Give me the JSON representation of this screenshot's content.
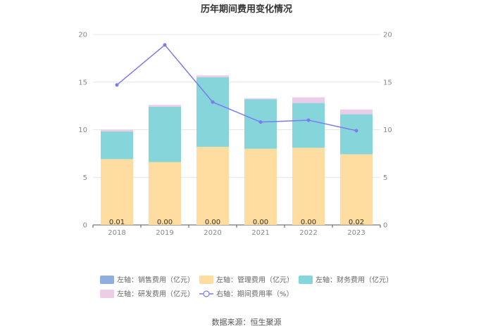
{
  "chart_data": {
    "type": "bar",
    "title": "历年期间费用变化情况",
    "categories": [
      "2018",
      "2019",
      "2020",
      "2021",
      "2022",
      "2023"
    ],
    "series": [
      {
        "name": "左轴：销售费用（亿元）",
        "axis": "left",
        "kind": "stacked-bar",
        "color": "#8eaee0",
        "values": [
          0.01,
          0.0,
          0.0,
          0.0,
          0.0,
          0.02
        ]
      },
      {
        "name": "左轴：管理费用（亿元）",
        "axis": "left",
        "kind": "stacked-bar",
        "color": "#ffdca0",
        "values": [
          6.9,
          6.6,
          8.2,
          8.0,
          8.1,
          7.4
        ]
      },
      {
        "name": "左轴：财务费用（亿元）",
        "axis": "left",
        "kind": "stacked-bar",
        "color": "#86d5da",
        "values": [
          2.9,
          5.8,
          7.3,
          5.2,
          4.7,
          4.2
        ]
      },
      {
        "name": "左轴：研发费用（亿元）",
        "axis": "left",
        "kind": "stacked-bar",
        "color": "#eccde8",
        "values": [
          0.2,
          0.2,
          0.2,
          0.1,
          0.6,
          0.5
        ]
      },
      {
        "name": "右轴：期间费用率（%）",
        "axis": "right",
        "kind": "line",
        "color": "#7b7bf0",
        "values": [
          14.7,
          18.9,
          12.9,
          10.8,
          11.0,
          9.9
        ]
      }
    ],
    "bar_value_labels": [
      "0.01",
      "0.00",
      "0.00",
      "0.00",
      "0.00",
      "0.02"
    ],
    "left_axis": {
      "min": 0,
      "max": 20,
      "ticks": [
        "0",
        "5",
        "10",
        "15",
        "20"
      ]
    },
    "right_axis": {
      "min": 0,
      "max": 20,
      "ticks": [
        "0",
        "5",
        "10",
        "15",
        "20"
      ]
    },
    "grid": true,
    "legend_position": "bottom",
    "source": "数据来源：恒生聚源"
  }
}
